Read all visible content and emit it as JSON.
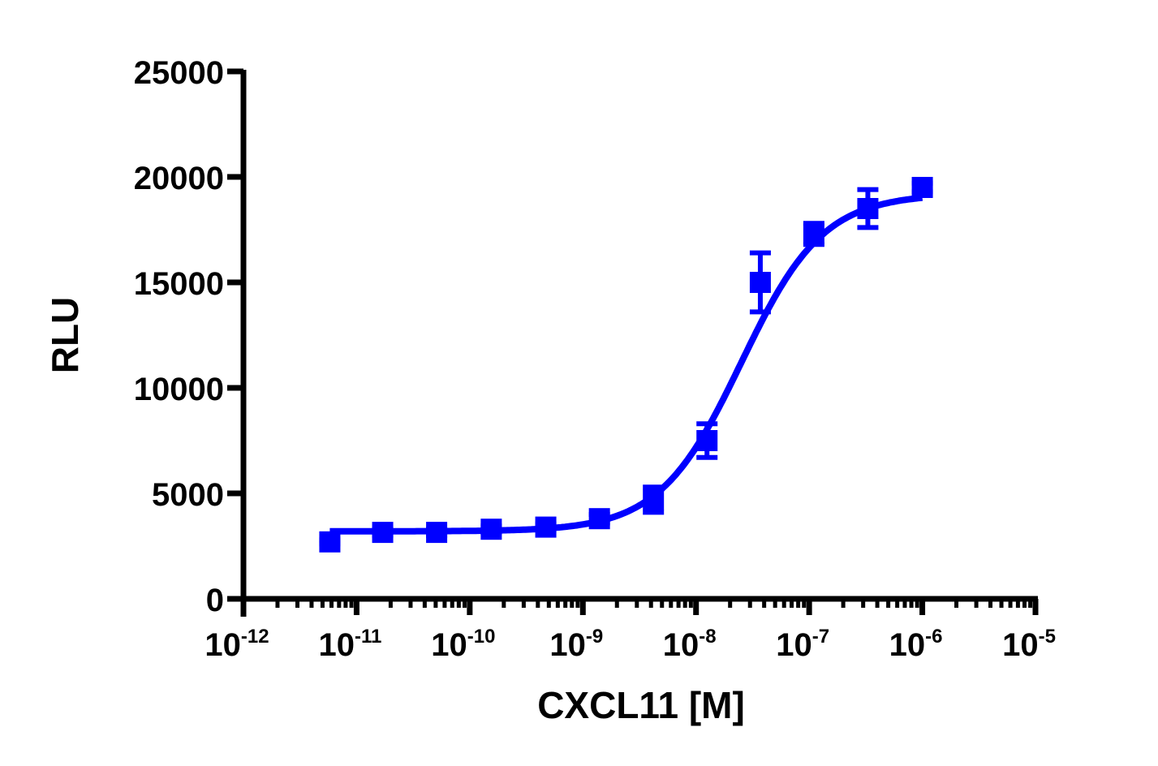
{
  "chart_data": {
    "type": "scatter",
    "title": "",
    "xlabel": "CXCL11 [M]",
    "ylabel": "RLU",
    "xscale": "log",
    "xlim": [
      1e-12,
      1e-05
    ],
    "ylim": [
      0,
      25000
    ],
    "x_tick_labels": [
      "10-12",
      "10-11",
      "10-10",
      "10-9",
      "10-8",
      "10-7",
      "10-6",
      "10-5"
    ],
    "x_tick_exponents": [
      -12,
      -11,
      -10,
      -9,
      -8,
      -7,
      -6,
      -5
    ],
    "y_ticks": [
      0,
      5000,
      10000,
      15000,
      20000,
      25000
    ],
    "grid": false,
    "legend": null,
    "color": "#0000ff",
    "series": [
      {
        "name": "CXCL11",
        "marker": "square",
        "x": [
          5.8e-12,
          1.7e-11,
          5.1e-11,
          1.55e-10,
          4.7e-10,
          1.4e-09,
          4.2e-09,
          1.25e-08,
          3.7e-08,
          1.1e-07,
          3.3e-07,
          1e-06
        ],
        "y": [
          2700,
          3150,
          3150,
          3300,
          3400,
          3800,
          4700,
          7500,
          15000,
          17300,
          18500,
          19500
        ],
        "error": [
          100,
          150,
          150,
          150,
          150,
          200,
          600,
          800,
          1400,
          500,
          900,
          200
        ]
      }
    ],
    "fit_curve": {
      "type": "four-parameter logistic",
      "bottom": 3200,
      "top": 19200,
      "logEC50": -7.6,
      "hill": 1.2
    }
  }
}
